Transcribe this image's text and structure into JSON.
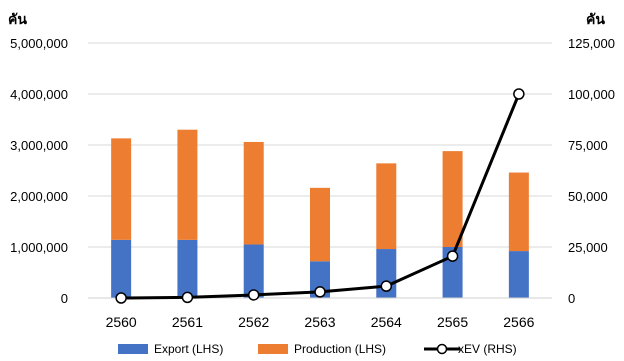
{
  "chart_data": {
    "type": "bar",
    "stacked": true,
    "categories": [
      "2560",
      "2561",
      "2562",
      "2563",
      "2564",
      "2565",
      "2566"
    ],
    "series": [
      {
        "name": "Export (LHS)",
        "type": "bar",
        "axis": "left",
        "color": "#4472C4",
        "values": [
          1140000,
          1140000,
          1050000,
          720000,
          960000,
          1000000,
          920000
        ]
      },
      {
        "name": "Production (LHS)",
        "type": "bar",
        "axis": "left",
        "color": "#ED7D31",
        "values": [
          1990000,
          2160000,
          2010000,
          1440000,
          1680000,
          1880000,
          1540000
        ]
      },
      {
        "name": "xEV (RHS)",
        "type": "line",
        "axis": "right",
        "color": "#000000",
        "values": [
          0,
          300,
          1500,
          3000,
          5800,
          20500,
          100000
        ]
      }
    ],
    "left_axis": {
      "unit_label": "คัน",
      "ylim": [
        0,
        5000000
      ],
      "ticks": [
        "0",
        "1,000,000",
        "2,000,000",
        "3,000,000",
        "4,000,000",
        "5,000,000"
      ]
    },
    "right_axis": {
      "unit_label": "คัน",
      "ylim": [
        0,
        125000
      ],
      "ticks": [
        "0",
        "25,000",
        "50,000",
        "75,000",
        "100,000",
        "125,000"
      ]
    },
    "grid": true,
    "legend_position": "bottom"
  }
}
